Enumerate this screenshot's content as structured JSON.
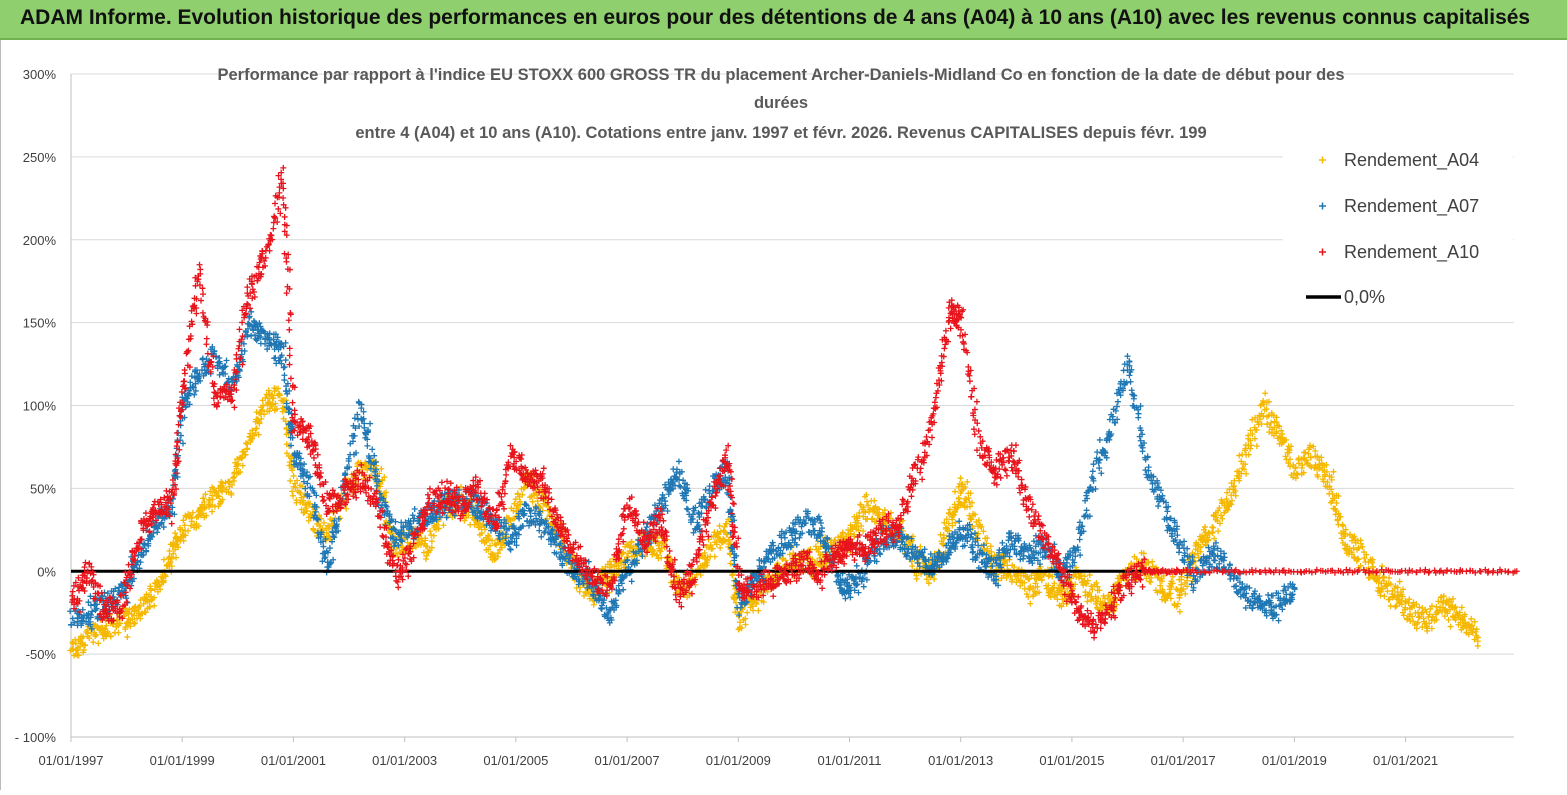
{
  "banner": {
    "text": "ADAM Informe. Evolution historique des performances en euros pour des détentions de 4 ans (A04) à 10 ans (A10) avec les revenus connus capitalisés"
  },
  "chart_data": {
    "type": "scatter",
    "title_lines": [
      "Performance par rapport à l'indice EU STOXX 600 GROSS TR  du placement Archer-Daniels-Midland Co en fonction de la date de début pour des",
      "durées",
      "entre 4 (A04) et 10 ans (A10).  Cotations entre janv. 1997 et févr. 2026. Revenus CAPITALISES depuis févr. 199"
    ],
    "x_axis": {
      "type": "date",
      "range": [
        "1997-01-01",
        "2023-01-01"
      ],
      "tick_labels": [
        "01/01/1997",
        "01/01/1999",
        "01/01/2001",
        "01/01/2003",
        "01/01/2005",
        "01/01/2007",
        "01/01/2009",
        "01/01/2011",
        "01/01/2013",
        "01/01/2015",
        "01/01/2017",
        "01/01/2019",
        "01/01/2021"
      ],
      "tick_years": [
        1997,
        1999,
        2001,
        2003,
        2005,
        2007,
        2009,
        2011,
        2013,
        2015,
        2017,
        2019,
        2021
      ]
    },
    "y_axis": {
      "range": [
        -100,
        300
      ],
      "ticks": [
        300,
        250,
        200,
        150,
        100,
        50,
        0,
        -50,
        -100
      ],
      "tick_labels": [
        "300%",
        "250%",
        "200%",
        "150%",
        "100%",
        "50%",
        "0%",
        "-50%",
        "- 100%"
      ]
    },
    "grid": "horizontal",
    "legend_position": "right-top",
    "series": [
      {
        "name": "Rendement_A04",
        "color": "#f5b800",
        "marker": "+",
        "points": [
          [
            1997.0,
            -50
          ],
          [
            1997.3,
            -40
          ],
          [
            1997.6,
            -35
          ],
          [
            1997.9,
            -30
          ],
          [
            1998.2,
            -25
          ],
          [
            1998.5,
            -10
          ],
          [
            1998.8,
            10
          ],
          [
            1999.0,
            25
          ],
          [
            1999.3,
            35
          ],
          [
            1999.6,
            45
          ],
          [
            1999.9,
            55
          ],
          [
            2000.2,
            80
          ],
          [
            2000.5,
            100
          ],
          [
            2000.8,
            105
          ],
          [
            2001.0,
            50
          ],
          [
            2001.3,
            35
          ],
          [
            2001.6,
            20
          ],
          [
            2001.9,
            45
          ],
          [
            2002.2,
            60
          ],
          [
            2002.5,
            60
          ],
          [
            2002.8,
            15
          ],
          [
            2003.1,
            20
          ],
          [
            2003.4,
            15
          ],
          [
            2003.7,
            40
          ],
          [
            2004.0,
            40
          ],
          [
            2004.3,
            30
          ],
          [
            2004.6,
            10
          ],
          [
            2004.9,
            30
          ],
          [
            2005.2,
            55
          ],
          [
            2005.5,
            40
          ],
          [
            2005.8,
            20
          ],
          [
            2006.1,
            -5
          ],
          [
            2006.4,
            -15
          ],
          [
            2006.7,
            0
          ],
          [
            2007.0,
            10
          ],
          [
            2007.3,
            15
          ],
          [
            2007.6,
            15
          ],
          [
            2007.9,
            -10
          ],
          [
            2008.2,
            -5
          ],
          [
            2008.5,
            15
          ],
          [
            2008.8,
            25
          ],
          [
            2009.0,
            -30
          ],
          [
            2009.3,
            -15
          ],
          [
            2009.6,
            -5
          ],
          [
            2009.9,
            5
          ],
          [
            2010.2,
            5
          ],
          [
            2010.5,
            10
          ],
          [
            2010.8,
            15
          ],
          [
            2011.0,
            20
          ],
          [
            2011.3,
            40
          ],
          [
            2011.6,
            30
          ],
          [
            2011.9,
            25
          ],
          [
            2012.2,
            5
          ],
          [
            2012.5,
            0
          ],
          [
            2012.8,
            30
          ],
          [
            2013.0,
            50
          ],
          [
            2013.3,
            25
          ],
          [
            2013.6,
            5
          ],
          [
            2013.9,
            0
          ],
          [
            2014.2,
            -10
          ],
          [
            2014.5,
            -5
          ],
          [
            2014.8,
            -15
          ],
          [
            2015.1,
            -5
          ],
          [
            2015.4,
            -15
          ],
          [
            2015.7,
            -20
          ],
          [
            2016.0,
            0
          ],
          [
            2016.3,
            5
          ],
          [
            2016.6,
            -10
          ],
          [
            2016.9,
            -15
          ],
          [
            2017.2,
            10
          ],
          [
            2017.5,
            25
          ],
          [
            2017.8,
            40
          ],
          [
            2018.1,
            70
          ],
          [
            2018.4,
            100
          ],
          [
            2018.7,
            85
          ],
          [
            2019.0,
            60
          ],
          [
            2019.3,
            70
          ],
          [
            2019.6,
            55
          ],
          [
            2019.9,
            20
          ],
          [
            2020.2,
            10
          ],
          [
            2020.5,
            -5
          ],
          [
            2020.8,
            -15
          ],
          [
            2021.1,
            -25
          ],
          [
            2021.4,
            -30
          ],
          [
            2021.7,
            -20
          ],
          [
            2022.0,
            -30
          ],
          [
            2022.3,
            -40
          ]
        ]
      },
      {
        "name": "Rendement_A07",
        "color": "#1f77b4",
        "marker": "+",
        "points": [
          [
            1997.0,
            -30
          ],
          [
            1997.3,
            -25
          ],
          [
            1997.6,
            -20
          ],
          [
            1997.9,
            -15
          ],
          [
            1998.2,
            10
          ],
          [
            1998.5,
            30
          ],
          [
            1998.8,
            35
          ],
          [
            1999.0,
            100
          ],
          [
            1999.3,
            120
          ],
          [
            1999.6,
            130
          ],
          [
            1999.9,
            110
          ],
          [
            2000.2,
            150
          ],
          [
            2000.5,
            140
          ],
          [
            2000.8,
            130
          ],
          [
            2001.0,
            70
          ],
          [
            2001.3,
            50
          ],
          [
            2001.6,
            0
          ],
          [
            2001.9,
            50
          ],
          [
            2002.2,
            100
          ],
          [
            2002.5,
            50
          ],
          [
            2002.8,
            20
          ],
          [
            2003.1,
            25
          ],
          [
            2003.4,
            35
          ],
          [
            2003.7,
            40
          ],
          [
            2004.0,
            45
          ],
          [
            2004.3,
            40
          ],
          [
            2004.6,
            30
          ],
          [
            2004.9,
            20
          ],
          [
            2005.2,
            35
          ],
          [
            2005.5,
            30
          ],
          [
            2005.8,
            10
          ],
          [
            2006.1,
            0
          ],
          [
            2006.4,
            -10
          ],
          [
            2006.7,
            -25
          ],
          [
            2007.0,
            0
          ],
          [
            2007.3,
            20
          ],
          [
            2007.6,
            40
          ],
          [
            2007.9,
            60
          ],
          [
            2008.2,
            30
          ],
          [
            2008.5,
            50
          ],
          [
            2008.8,
            60
          ],
          [
            2009.0,
            -20
          ],
          [
            2009.3,
            -5
          ],
          [
            2009.6,
            10
          ],
          [
            2009.9,
            20
          ],
          [
            2010.2,
            30
          ],
          [
            2010.5,
            25
          ],
          [
            2010.8,
            -5
          ],
          [
            2011.0,
            -10
          ],
          [
            2011.3,
            5
          ],
          [
            2011.6,
            20
          ],
          [
            2011.9,
            20
          ],
          [
            2012.2,
            10
          ],
          [
            2012.5,
            0
          ],
          [
            2012.8,
            15
          ],
          [
            2013.0,
            25
          ],
          [
            2013.3,
            10
          ],
          [
            2013.6,
            0
          ],
          [
            2013.9,
            20
          ],
          [
            2014.2,
            10
          ],
          [
            2014.5,
            15
          ],
          [
            2014.8,
            0
          ],
          [
            2015.1,
            15
          ],
          [
            2015.4,
            60
          ],
          [
            2015.7,
            90
          ],
          [
            2016.0,
            125
          ],
          [
            2016.3,
            70
          ],
          [
            2016.6,
            40
          ],
          [
            2016.9,
            20
          ],
          [
            2017.2,
            -5
          ],
          [
            2017.5,
            10
          ],
          [
            2017.8,
            5
          ],
          [
            2018.1,
            -15
          ],
          [
            2018.4,
            -20
          ],
          [
            2018.7,
            -20
          ],
          [
            2019.0,
            -10
          ]
        ]
      },
      {
        "name": "Rendement_A10",
        "color": "#e8141c",
        "marker": "+",
        "points": [
          [
            1997.0,
            -20
          ],
          [
            1997.3,
            0
          ],
          [
            1997.6,
            -25
          ],
          [
            1997.9,
            -20
          ],
          [
            1998.2,
            20
          ],
          [
            1998.5,
            35
          ],
          [
            1998.8,
            40
          ],
          [
            1999.0,
            110
          ],
          [
            1999.3,
            180
          ],
          [
            1999.6,
            100
          ],
          [
            1999.9,
            110
          ],
          [
            2000.2,
            170
          ],
          [
            2000.5,
            190
          ],
          [
            2000.8,
            240
          ],
          [
            2001.0,
            90
          ],
          [
            2001.3,
            80
          ],
          [
            2001.6,
            40
          ],
          [
            2001.9,
            45
          ],
          [
            2002.2,
            55
          ],
          [
            2002.5,
            40
          ],
          [
            2002.8,
            0
          ],
          [
            2003.1,
            10
          ],
          [
            2003.4,
            40
          ],
          [
            2003.7,
            45
          ],
          [
            2004.0,
            40
          ],
          [
            2004.3,
            50
          ],
          [
            2004.6,
            30
          ],
          [
            2004.9,
            70
          ],
          [
            2005.2,
            60
          ],
          [
            2005.5,
            50
          ],
          [
            2005.8,
            25
          ],
          [
            2006.1,
            10
          ],
          [
            2006.4,
            -5
          ],
          [
            2006.7,
            -10
          ],
          [
            2007.0,
            40
          ],
          [
            2007.3,
            20
          ],
          [
            2007.6,
            30
          ],
          [
            2007.9,
            -15
          ],
          [
            2008.2,
            0
          ],
          [
            2008.5,
            40
          ],
          [
            2008.8,
            70
          ],
          [
            2009.0,
            -10
          ],
          [
            2009.3,
            -10
          ],
          [
            2009.6,
            -5
          ],
          [
            2009.9,
            0
          ],
          [
            2010.2,
            5
          ],
          [
            2010.5,
            0
          ],
          [
            2010.8,
            10
          ],
          [
            2011.0,
            15
          ],
          [
            2011.3,
            15
          ],
          [
            2011.6,
            25
          ],
          [
            2011.9,
            30
          ],
          [
            2012.2,
            60
          ],
          [
            2012.5,
            90
          ],
          [
            2012.8,
            160
          ],
          [
            2013.0,
            150
          ],
          [
            2013.3,
            80
          ],
          [
            2013.6,
            60
          ],
          [
            2013.9,
            70
          ],
          [
            2014.2,
            40
          ],
          [
            2014.5,
            20
          ],
          [
            2014.8,
            0
          ],
          [
            2015.1,
            -25
          ],
          [
            2015.4,
            -35
          ],
          [
            2015.7,
            -20
          ],
          [
            2016.0,
            -5
          ],
          [
            2016.3,
            0
          ],
          [
            2016.6,
            0
          ],
          [
            2017.0,
            0
          ],
          [
            2018.0,
            0
          ],
          [
            2019.0,
            0
          ],
          [
            2020.0,
            0
          ],
          [
            2021.0,
            0
          ],
          [
            2022.0,
            0
          ],
          [
            2023.0,
            0
          ]
        ]
      },
      {
        "name": "0,0%",
        "color": "#000000",
        "marker": "line",
        "points": [
          [
            1997.0,
            0
          ],
          [
            2016.5,
            0
          ]
        ]
      }
    ]
  }
}
